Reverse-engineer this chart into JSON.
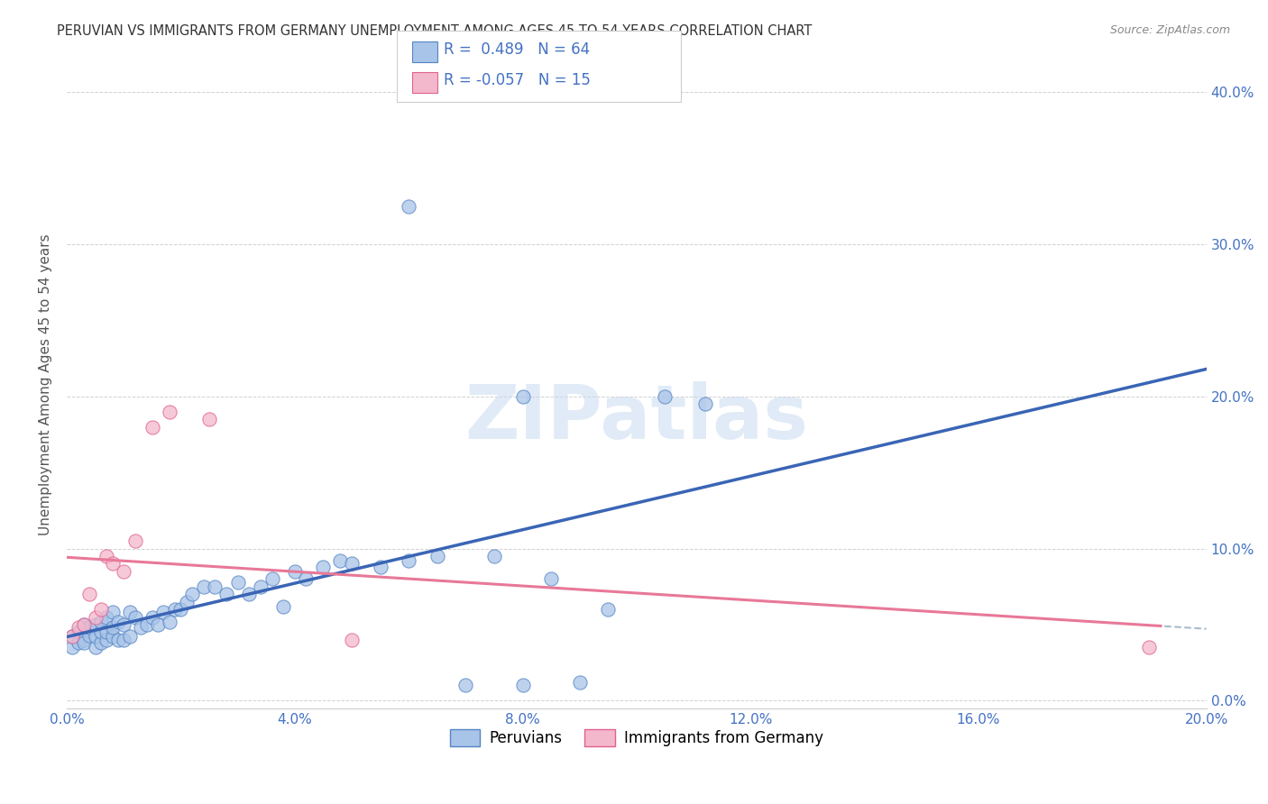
{
  "title": "PERUVIAN VS IMMIGRANTS FROM GERMANY UNEMPLOYMENT AMONG AGES 45 TO 54 YEARS CORRELATION CHART",
  "source": "Source: ZipAtlas.com",
  "ylabel": "Unemployment Among Ages 45 to 54 years",
  "xlim": [
    0.0,
    0.2
  ],
  "ylim": [
    -0.005,
    0.42
  ],
  "x_ticks": [
    0.0,
    0.04,
    0.08,
    0.12,
    0.16,
    0.2
  ],
  "y_ticks": [
    0.0,
    0.1,
    0.2,
    0.3,
    0.4
  ],
  "r_peruvian": "0.489",
  "n_peruvian": "64",
  "r_german": "-0.057",
  "n_german": "15",
  "color_peruvian_fill": "#a8c4e8",
  "color_peruvian_edge": "#5585c5",
  "color_german_fill": "#f4b8cc",
  "color_german_edge": "#e06090",
  "color_blue_line": "#3a65b5",
  "color_pink_line": "#e87898",
  "color_dash_line": "#aabbcc",
  "watermark_text": "ZIPatlas",
  "legend_labels": [
    "Peruvians",
    "Immigrants from Germany"
  ],
  "peruvian_x": [
    0.001,
    0.001,
    0.002,
    0.002,
    0.003,
    0.003,
    0.003,
    0.004,
    0.004,
    0.005,
    0.005,
    0.005,
    0.006,
    0.006,
    0.006,
    0.007,
    0.007,
    0.007,
    0.008,
    0.008,
    0.008,
    0.009,
    0.009,
    0.01,
    0.01,
    0.011,
    0.011,
    0.012,
    0.013,
    0.014,
    0.015,
    0.016,
    0.017,
    0.018,
    0.019,
    0.02,
    0.021,
    0.022,
    0.024,
    0.026,
    0.028,
    0.03,
    0.032,
    0.034,
    0.036,
    0.038,
    0.04,
    0.042,
    0.045,
    0.048,
    0.05,
    0.055,
    0.06,
    0.065,
    0.07,
    0.075,
    0.08,
    0.085,
    0.09,
    0.095,
    0.105,
    0.112,
    0.06,
    0.08
  ],
  "peruvian_y": [
    0.035,
    0.042,
    0.038,
    0.045,
    0.04,
    0.038,
    0.05,
    0.043,
    0.048,
    0.035,
    0.042,
    0.05,
    0.038,
    0.045,
    0.052,
    0.04,
    0.045,
    0.055,
    0.042,
    0.048,
    0.058,
    0.04,
    0.052,
    0.04,
    0.05,
    0.042,
    0.058,
    0.055,
    0.048,
    0.05,
    0.055,
    0.05,
    0.058,
    0.052,
    0.06,
    0.06,
    0.065,
    0.07,
    0.075,
    0.075,
    0.07,
    0.078,
    0.07,
    0.075,
    0.08,
    0.062,
    0.085,
    0.08,
    0.088,
    0.092,
    0.09,
    0.088,
    0.092,
    0.095,
    0.01,
    0.095,
    0.01,
    0.08,
    0.012,
    0.06,
    0.2,
    0.195,
    0.325,
    0.2
  ],
  "german_x": [
    0.001,
    0.002,
    0.003,
    0.004,
    0.005,
    0.006,
    0.007,
    0.008,
    0.01,
    0.012,
    0.015,
    0.018,
    0.025,
    0.05,
    0.19
  ],
  "german_y": [
    0.042,
    0.048,
    0.05,
    0.07,
    0.055,
    0.06,
    0.095,
    0.09,
    0.085,
    0.105,
    0.18,
    0.19,
    0.185,
    0.04,
    0.035
  ]
}
